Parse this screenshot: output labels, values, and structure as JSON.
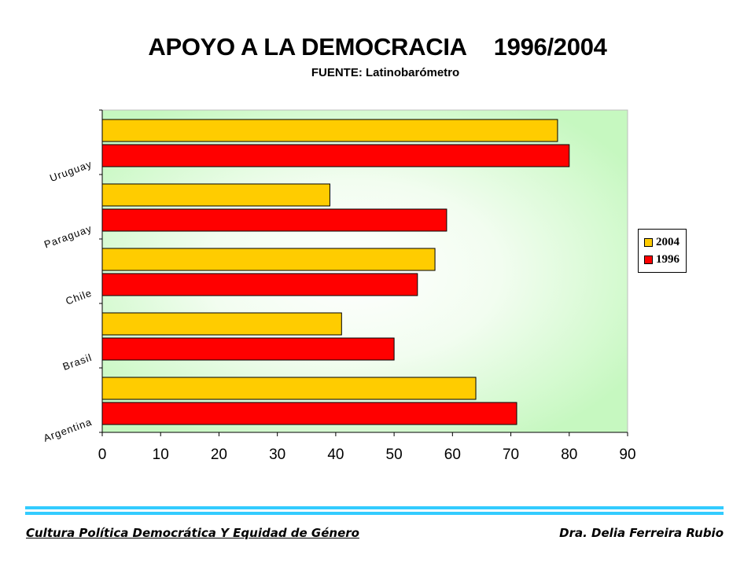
{
  "title_main": "APOYO A LA DEMOCRACIA",
  "title_years": "1996/2004",
  "subtitle": "FUENTE: Latinobarómetro",
  "chart_data": {
    "type": "bar",
    "orientation": "horizontal",
    "categories": [
      "Uruguay",
      "Paraguay",
      "Chile",
      "Brasil",
      "Argentina"
    ],
    "series": [
      {
        "name": "2004",
        "color": "#ffcc00",
        "values": [
          78,
          39,
          57,
          41,
          64
        ]
      },
      {
        "name": "1996",
        "color": "#ff0000",
        "values": [
          80,
          59,
          54,
          50,
          71
        ]
      }
    ],
    "xlim": [
      0,
      90
    ],
    "xticks": [
      "0",
      "10",
      "20",
      "30",
      "40",
      "50",
      "60",
      "70",
      "80",
      "90"
    ],
    "legend_position": "right",
    "plot_background": "radial gradient white to light green"
  },
  "footer": {
    "left": "Cultura Política Democrática Y Equidad de Género",
    "right": "Dra. Delia Ferreira Rubio"
  }
}
